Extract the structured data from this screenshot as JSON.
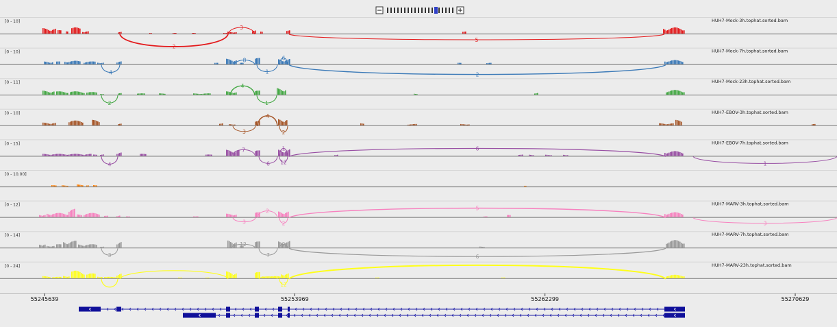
{
  "zoom": {
    "minus_icon": "minus-icon",
    "plus_icon": "plus-icon",
    "ticks": 20,
    "current_index": 14
  },
  "locus": {
    "start": 55245639,
    "end": 55270629
  },
  "tracks": [
    {
      "range": "[0 - 10]",
      "name": "HUH7-Mock-3h.tophat.sorted.bam",
      "color": "#e31a1c",
      "bars": [
        [
          62,
          82,
          8
        ],
        [
          84,
          90,
          5
        ],
        [
          96,
          100,
          6
        ],
        [
          104,
          118,
          9
        ],
        [
          120,
          130,
          4
        ],
        [
          172,
          177,
          3
        ],
        [
          218,
          222,
          1
        ],
        [
          252,
          258,
          1
        ],
        [
          280,
          286,
          1
        ],
        [
          326,
          331,
          1
        ],
        [
          332,
          346,
          3
        ],
        [
          368,
          373,
          5
        ],
        [
          380,
          384,
          3
        ],
        [
          418,
          423,
          5
        ],
        [
          675,
          680,
          3
        ],
        [
          968,
          1000,
          9
        ]
      ],
      "juncs": [
        [
          175,
          333,
          18,
          "2",
          false
        ],
        [
          333,
          372,
          -10,
          "3",
          true
        ],
        [
          422,
          970,
          8,
          "5",
          false
        ]
      ]
    },
    {
      "range": "[0 - 10]",
      "name": "HUH7-Mock-7h.tophat.sorted.bam",
      "color": "#3a79b7",
      "bars": [
        [
          64,
          78,
          4
        ],
        [
          82,
          88,
          4
        ],
        [
          94,
          118,
          5
        ],
        [
          122,
          140,
          4
        ],
        [
          142,
          152,
          3
        ],
        [
          170,
          177,
          5
        ],
        [
          313,
          318,
          2
        ],
        [
          330,
          345,
          8
        ],
        [
          350,
          356,
          2
        ],
        [
          372,
          380,
          9
        ],
        [
          406,
          424,
          8
        ],
        [
          668,
          673,
          2
        ],
        [
          710,
          718,
          2
        ],
        [
          970,
          998,
          6
        ]
      ],
      "juncs": [
        [
          148,
          175,
          11,
          "4",
          false
        ],
        [
          342,
          372,
          -7,
          "8",
          true
        ],
        [
          375,
          405,
          10,
          "1",
          false
        ],
        [
          408,
          420,
          -10,
          "6",
          true
        ],
        [
          422,
          972,
          14,
          "2",
          false
        ]
      ]
    },
    {
      "range": "[0 - 11]",
      "name": "HUH7-Mock-23h.tophat.sorted.bam",
      "color": "#43a843",
      "bars": [
        [
          62,
          80,
          6
        ],
        [
          82,
          100,
          5
        ],
        [
          102,
          124,
          5
        ],
        [
          126,
          142,
          4
        ],
        [
          146,
          152,
          1
        ],
        [
          172,
          178,
          3
        ],
        [
          200,
          212,
          2
        ],
        [
          232,
          242,
          2
        ],
        [
          282,
          308,
          2
        ],
        [
          330,
          345,
          5
        ],
        [
          372,
          380,
          6
        ],
        [
          404,
          418,
          10
        ],
        [
          604,
          610,
          2
        ],
        [
          780,
          785,
          3
        ],
        [
          972,
          1000,
          7
        ]
      ],
      "juncs": [
        [
          148,
          172,
          11,
          "2",
          false
        ],
        [
          336,
          372,
          -14,
          "4",
          true
        ],
        [
          375,
          404,
          11,
          "1",
          false
        ]
      ]
    },
    {
      "range": "[0 - 10]",
      "name": "HUH7-EBOV-3h.tophat.sorted.bam",
      "color": "#a65628",
      "bars": [
        [
          62,
          82,
          4
        ],
        [
          100,
          122,
          7
        ],
        [
          134,
          146,
          8
        ],
        [
          172,
          177,
          3
        ],
        [
          320,
          326,
          3
        ],
        [
          334,
          344,
          2
        ],
        [
          372,
          380,
          6
        ],
        [
          406,
          420,
          10
        ],
        [
          526,
          532,
          3
        ],
        [
          595,
          608,
          2
        ],
        [
          672,
          685,
          2
        ],
        [
          962,
          984,
          3
        ],
        [
          986,
          996,
          8
        ],
        [
          1185,
          1191,
          2
        ]
      ],
      "juncs": [
        [
          340,
          373,
          8,
          "3",
          false
        ],
        [
          376,
          405,
          -15,
          "4",
          true
        ],
        [
          408,
          420,
          9,
          "2",
          false
        ]
      ]
    },
    {
      "range": "[0 - 15]",
      "name": "HUH7-EBOV-7h.tophat.sorted.bam",
      "color": "#984ea3",
      "bars": [
        [
          62,
          134,
          3
        ],
        [
          136,
          142,
          2
        ],
        [
          146,
          152,
          3
        ],
        [
          170,
          177,
          6
        ],
        [
          204,
          214,
          3
        ],
        [
          300,
          310,
          2
        ],
        [
          330,
          350,
          9
        ],
        [
          372,
          380,
          8
        ],
        [
          406,
          423,
          10
        ],
        [
          488,
          494,
          2
        ],
        [
          756,
          764,
          2
        ],
        [
          772,
          780,
          2
        ],
        [
          796,
          806,
          2
        ],
        [
          822,
          830,
          2
        ],
        [
          970,
          998,
          7
        ]
      ],
      "juncs": [
        [
          148,
          172,
          11,
          "4",
          false
        ],
        [
          338,
          373,
          -10,
          "7",
          true
        ],
        [
          378,
          405,
          10,
          "6",
          false
        ],
        [
          408,
          420,
          -12,
          "1",
          true
        ],
        [
          408,
          420,
          8,
          "12",
          false
        ],
        [
          422,
          972,
          -12,
          "6",
          true
        ],
        [
          1012,
          1222,
          10,
          "1",
          false
        ]
      ]
    },
    {
      "range": "[0 - 10.00]",
      "name": "",
      "color": "#ff7f00",
      "bars": [
        [
          75,
          82,
          2
        ],
        [
          90,
          100,
          2
        ],
        [
          112,
          122,
          3
        ],
        [
          126,
          130,
          2
        ],
        [
          136,
          142,
          2
        ],
        [
          765,
          768,
          1
        ]
      ],
      "juncs": []
    },
    {
      "range": "[0 - 12]",
      "name": "HUH7-MARV-3h.tophat.sorted.bam",
      "color": "#f781bf",
      "bars": [
        [
          57,
          66,
          4
        ],
        [
          68,
          100,
          6
        ],
        [
          100,
          110,
          12
        ],
        [
          112,
          120,
          4
        ],
        [
          122,
          145,
          6
        ],
        [
          152,
          158,
          2
        ],
        [
          170,
          176,
          3
        ],
        [
          184,
          190,
          1
        ],
        [
          282,
          290,
          1
        ],
        [
          330,
          345,
          5
        ],
        [
          372,
          380,
          7
        ],
        [
          406,
          422,
          9
        ],
        [
          706,
          712,
          1
        ],
        [
          740,
          746,
          3
        ],
        [
          970,
          998,
          7
        ]
      ],
      "juncs": [
        [
          340,
          373,
          6,
          "3",
          false
        ],
        [
          376,
          405,
          -10,
          "2",
          true
        ],
        [
          408,
          420,
          8,
          "2",
          false
        ],
        [
          422,
          972,
          -14,
          "5",
          true
        ],
        [
          1012,
          1222,
          8,
          "3",
          false
        ]
      ]
    },
    {
      "range": "[0 - 14]",
      "name": "HUH7-MARV-7h.tophat.sorted.bam",
      "color": "#999999",
      "bars": [
        [
          57,
          66,
          6
        ],
        [
          68,
          80,
          3
        ],
        [
          82,
          90,
          5
        ],
        [
          92,
          112,
          10
        ],
        [
          114,
          142,
          5
        ],
        [
          146,
          152,
          2
        ],
        [
          170,
          177,
          10
        ],
        [
          332,
          345,
          11
        ],
        [
          350,
          355,
          3
        ],
        [
          372,
          380,
          9
        ],
        [
          406,
          423,
          10
        ],
        [
          700,
          708,
          2
        ],
        [
          972,
          1000,
          11
        ]
      ],
      "juncs": [
        [
          148,
          172,
          10,
          "3",
          false
        ],
        [
          337,
          373,
          -6,
          "12",
          true
        ],
        [
          378,
          405,
          10,
          "7",
          false
        ],
        [
          408,
          420,
          -6,
          "9",
          true
        ],
        [
          422,
          972,
          12,
          "6",
          false
        ]
      ]
    },
    {
      "range": "[0 - 24]",
      "name": "HUH7-MARV-23h.tophat.sorted.bam",
      "color": "#ffff1a",
      "bars": [
        [
          62,
          74,
          3
        ],
        [
          76,
          90,
          2
        ],
        [
          92,
          102,
          4
        ],
        [
          104,
          124,
          11
        ],
        [
          126,
          140,
          7
        ],
        [
          142,
          150,
          3
        ],
        [
          152,
          170,
          2
        ],
        [
          170,
          177,
          8
        ],
        [
          260,
          265,
          1
        ],
        [
          300,
          305,
          1
        ],
        [
          330,
          345,
          10
        ],
        [
          372,
          380,
          9
        ],
        [
          382,
          410,
          3
        ],
        [
          410,
          422,
          8
        ],
        [
          548,
          553,
          1
        ],
        [
          732,
          737,
          1
        ],
        [
          972,
          1000,
          5
        ]
      ],
      "juncs": [
        [
          148,
          172,
          12,
          "",
          false
        ],
        [
          175,
          333,
          -12,
          "",
          true
        ],
        [
          378,
          405,
          -3,
          "",
          true
        ],
        [
          408,
          420,
          8,
          "12",
          false
        ],
        [
          422,
          972,
          -20,
          "",
          true
        ]
      ]
    }
  ],
  "ruler": {
    "ticks": [
      {
        "label": "55245639",
        "value": 55245639
      },
      {
        "label": "55253969",
        "value": 55253969
      },
      {
        "label": "55262299",
        "value": 55262299
      },
      {
        "label": "55270629",
        "value": 55270629
      }
    ]
  },
  "genes": [
    {
      "exons": [
        [
          115,
          147
        ],
        [
          170,
          177
        ],
        [
          330,
          336
        ],
        [
          372,
          378
        ],
        [
          406,
          412
        ],
        [
          420,
          423
        ],
        [
          970,
          1000
        ]
      ]
    },
    {
      "exons": [
        [
          267,
          315
        ],
        [
          330,
          336
        ],
        [
          372,
          378
        ],
        [
          406,
          412
        ],
        [
          420,
          423
        ],
        [
          970,
          1000
        ]
      ]
    }
  ]
}
